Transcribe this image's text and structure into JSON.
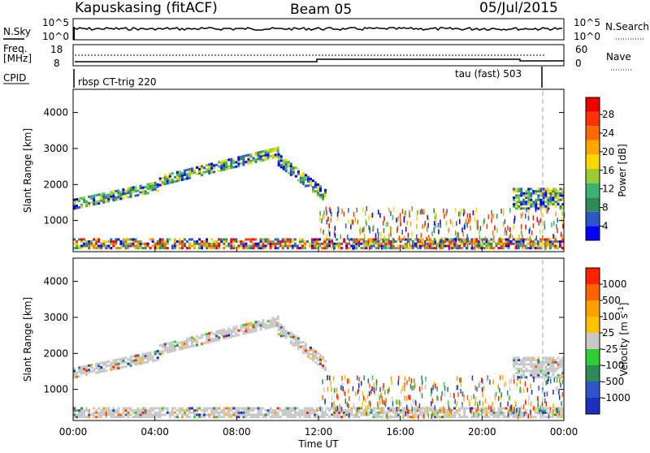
{
  "header": {
    "station": "Kapuskasing (fitACF)",
    "beam": "Beam 05",
    "date": "05/Jul/2015"
  },
  "noise_panel": {
    "left_label": "N.Sky",
    "right_label": "N.Search",
    "left_ticks": [
      "10^5",
      "10^0"
    ],
    "right_ticks": [
      "10^5",
      "10^0"
    ]
  },
  "freq_panel": {
    "left_label_1": "Freq.",
    "left_label_2": "[MHz]",
    "right_label": "Nave",
    "left_ticks": [
      "18",
      "8"
    ],
    "right_ticks": [
      "60",
      "0"
    ]
  },
  "cpid": {
    "label": "CPID",
    "start_name": "rbsp CT-trig 220",
    "end_name": "tau (fast) 503"
  },
  "time_axis": {
    "label": "Time UT",
    "ticks": [
      "00:00",
      "04:00",
      "08:00",
      "12:00",
      "16:00",
      "20:00",
      "00:00"
    ]
  },
  "range_axis": {
    "label": "Slant Range [km]",
    "ticks": [
      "1000",
      "2000",
      "3000",
      "4000"
    ]
  },
  "power_scale": {
    "label": "Power [dB]",
    "ticks": [
      "4",
      "8",
      "12",
      "16",
      "20",
      "24",
      "28"
    ],
    "colors": [
      "#0000ff",
      "#2f57c8",
      "#2e8b57",
      "#3cb371",
      "#9acd32",
      "#ffd700",
      "#ffa500",
      "#ff6a00",
      "#ff3300",
      "#ee0000"
    ]
  },
  "velocity_scale": {
    "label": "Velocity [m s^-1]",
    "ticks": [
      "1000",
      "500",
      "100",
      "25",
      "-25",
      "-100",
      "-500",
      "-1000"
    ],
    "colors": [
      "#1c2fbf",
      "#2f55c8",
      "#2e8b57",
      "#32cd32",
      "#c8c8c8",
      "#ffc000",
      "#ffa000",
      "#ff6000",
      "#ff2000"
    ]
  },
  "chart_data": {
    "type": "heatmap",
    "x_range_hours": [
      0,
      24
    ],
    "y_range_km": [
      180,
      4600
    ],
    "scatter_regions_km": [
      {
        "name": "near range band",
        "t_start": 0.0,
        "t_end": 24.0,
        "r_low": 200,
        "r_high": 500
      },
      {
        "name": "morning band",
        "t_start": 0.0,
        "t_end": 4.2,
        "r_low": 1300,
        "r_high": 1800
      },
      {
        "name": "arc rising",
        "t_start": 4.2,
        "t_end": 10.0,
        "r_low": 1900,
        "r_high": 2900
      },
      {
        "name": "arc falling",
        "t_start": 10.0,
        "t_end": 12.3,
        "r_low": 1500,
        "r_high": 2800
      },
      {
        "name": "evening band",
        "t_start": 21.5,
        "t_end": 24.0,
        "r_low": 1300,
        "r_high": 1900
      }
    ],
    "cpid_change_hour": 22.7
  }
}
